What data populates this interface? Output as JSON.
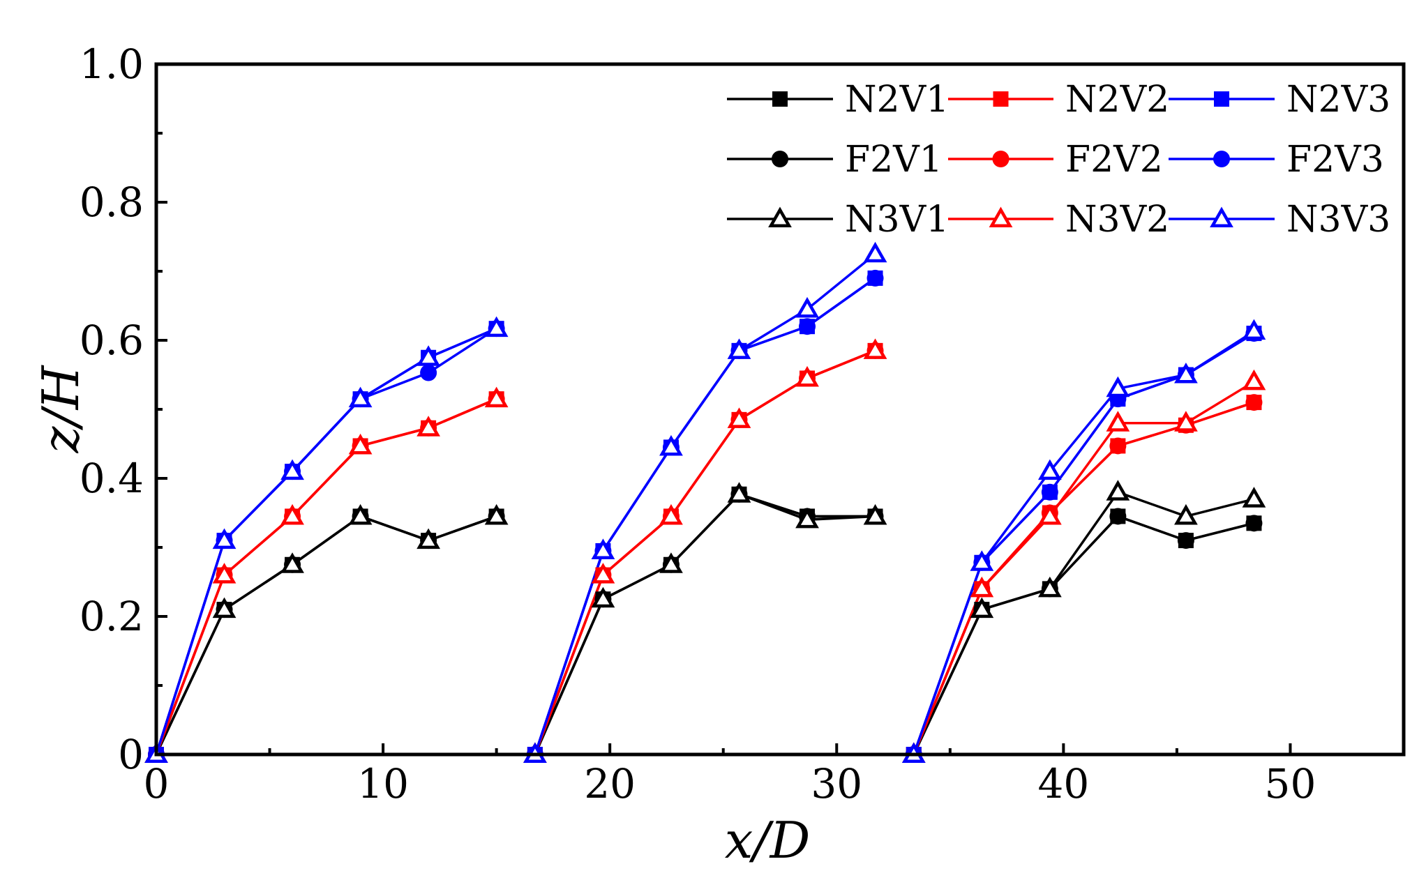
{
  "chart_data": {
    "type": "line",
    "title": "",
    "xlabel": "x/D",
    "ylabel": "z/H",
    "xlim": [
      0,
      55
    ],
    "ylim": [
      0,
      1.0
    ],
    "xticks": [
      0,
      10,
      20,
      30,
      40,
      50
    ],
    "xtick_labels": [
      "0",
      "10",
      "20",
      "30",
      "40",
      "50"
    ],
    "yticks": [
      0,
      0.2,
      0.4,
      0.6,
      0.8,
      1.0
    ],
    "ytick_labels": [
      "0",
      "0.2",
      "0.4",
      "0.6",
      "0.8",
      "1.0"
    ],
    "grid": false,
    "legend_position": "top-right",
    "x": [
      0,
      3,
      6,
      9,
      12,
      15,
      16.7,
      19.7,
      22.7,
      25.7,
      28.7,
      31.7,
      33.4,
      36.4,
      39.4,
      42.4,
      45.4,
      48.4
    ],
    "segment_length": 6,
    "series": [
      {
        "name": "N2V1",
        "color": "#000000",
        "marker": "square",
        "values": [
          0,
          0.21,
          0.275,
          0.345,
          0.31,
          0.345,
          0,
          0.225,
          0.275,
          0.377,
          0.345,
          0.345,
          0,
          0.21,
          0.24,
          0.345,
          0.31,
          0.335
        ]
      },
      {
        "name": "N2V2",
        "color": "#ff0000",
        "marker": "square",
        "values": [
          0,
          0.26,
          0.345,
          0.447,
          0.473,
          0.515,
          0,
          0.26,
          0.345,
          0.485,
          0.545,
          0.585,
          0,
          0.24,
          0.35,
          0.447,
          0.477,
          0.51
        ]
      },
      {
        "name": "N2V3",
        "color": "#0000ff",
        "marker": "square",
        "values": [
          0,
          0.31,
          0.41,
          0.515,
          0.575,
          0.617,
          0,
          0.295,
          0.445,
          0.585,
          0.62,
          0.69,
          0,
          0.278,
          0.38,
          0.515,
          0.55,
          0.61
        ]
      },
      {
        "name": "F2V1",
        "color": "#000000",
        "marker": "circle",
        "values": [
          0,
          0.21,
          0.275,
          0.345,
          0.31,
          0.345,
          0,
          0.225,
          0.275,
          0.377,
          0.345,
          0.345,
          0,
          0.21,
          0.24,
          0.345,
          0.31,
          0.335
        ]
      },
      {
        "name": "F2V2",
        "color": "#ff0000",
        "marker": "circle",
        "values": [
          0,
          0.26,
          0.345,
          0.447,
          0.473,
          0.515,
          0,
          0.26,
          0.345,
          0.485,
          0.545,
          0.585,
          0,
          0.24,
          0.35,
          0.447,
          0.477,
          0.51
        ]
      },
      {
        "name": "F2V3",
        "color": "#0000ff",
        "marker": "circle",
        "values": [
          0,
          0.31,
          0.41,
          0.515,
          0.553,
          0.617,
          0,
          0.295,
          0.445,
          0.585,
          0.62,
          0.69,
          0,
          0.278,
          0.38,
          0.515,
          0.55,
          0.61
        ]
      },
      {
        "name": "N3V1",
        "color": "#000000",
        "marker": "triangle-open",
        "values": [
          0,
          0.21,
          0.275,
          0.345,
          0.31,
          0.345,
          0,
          0.225,
          0.275,
          0.377,
          0.34,
          0.345,
          0,
          0.21,
          0.24,
          0.38,
          0.345,
          0.37
        ]
      },
      {
        "name": "N3V2",
        "color": "#ff0000",
        "marker": "triangle-open",
        "values": [
          0,
          0.26,
          0.345,
          0.447,
          0.473,
          0.515,
          0,
          0.26,
          0.345,
          0.485,
          0.545,
          0.585,
          0,
          0.24,
          0.345,
          0.48,
          0.48,
          0.54
        ]
      },
      {
        "name": "N3V3",
        "color": "#0000ff",
        "marker": "triangle-open",
        "values": [
          0,
          0.31,
          0.41,
          0.515,
          0.575,
          0.617,
          0,
          0.295,
          0.445,
          0.585,
          0.645,
          0.725,
          0,
          0.278,
          0.41,
          0.53,
          0.55,
          0.613
        ]
      }
    ]
  }
}
